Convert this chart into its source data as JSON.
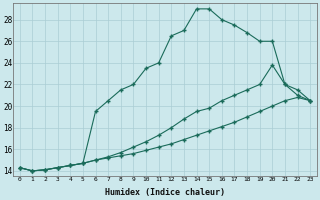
{
  "xlabel": "Humidex (Indice chaleur)",
  "background_color": "#cce8ec",
  "grid_color": "#aacdd4",
  "line_color": "#1a6b5a",
  "xlim": [
    -0.5,
    23.5
  ],
  "ylim": [
    13.5,
    29.5
  ],
  "yticks": [
    14,
    16,
    18,
    20,
    22,
    24,
    26,
    28
  ],
  "xticks": [
    0,
    1,
    2,
    3,
    4,
    5,
    6,
    7,
    8,
    9,
    10,
    11,
    12,
    13,
    14,
    15,
    16,
    17,
    18,
    19,
    20,
    21,
    22,
    23
  ],
  "line1_x": [
    0,
    1,
    2,
    3,
    4,
    5,
    6,
    7,
    8,
    9,
    10,
    11,
    12,
    13,
    14,
    15,
    16,
    17,
    18,
    19,
    20,
    21,
    22,
    23
  ],
  "line1_y": [
    14.3,
    14.0,
    14.1,
    14.3,
    14.5,
    14.7,
    19.5,
    20.5,
    21.5,
    22.0,
    23.5,
    24.0,
    26.5,
    27.0,
    29.0,
    29.0,
    28.0,
    27.5,
    26.8,
    26.0,
    26.0,
    22.0,
    21.0,
    20.5
  ],
  "line2_x": [
    0,
    1,
    2,
    3,
    4,
    5,
    6,
    7,
    8,
    9,
    10,
    11,
    12,
    13,
    14,
    15,
    16,
    17,
    18,
    19,
    20,
    21,
    22,
    23
  ],
  "line2_y": [
    14.3,
    14.0,
    14.1,
    14.3,
    14.5,
    14.7,
    15.0,
    15.3,
    15.7,
    16.2,
    16.7,
    17.3,
    18.0,
    18.8,
    19.5,
    19.8,
    20.5,
    21.0,
    21.5,
    22.0,
    23.8,
    22.0,
    21.5,
    20.5
  ],
  "line3_x": [
    0,
    1,
    2,
    3,
    4,
    5,
    6,
    7,
    8,
    9,
    10,
    11,
    12,
    13,
    14,
    15,
    16,
    17,
    18,
    19,
    20,
    21,
    22,
    23
  ],
  "line3_y": [
    14.3,
    14.0,
    14.1,
    14.3,
    14.5,
    14.7,
    15.0,
    15.2,
    15.4,
    15.6,
    15.9,
    16.2,
    16.5,
    16.9,
    17.3,
    17.7,
    18.1,
    18.5,
    19.0,
    19.5,
    20.0,
    20.5,
    20.8,
    20.5
  ]
}
